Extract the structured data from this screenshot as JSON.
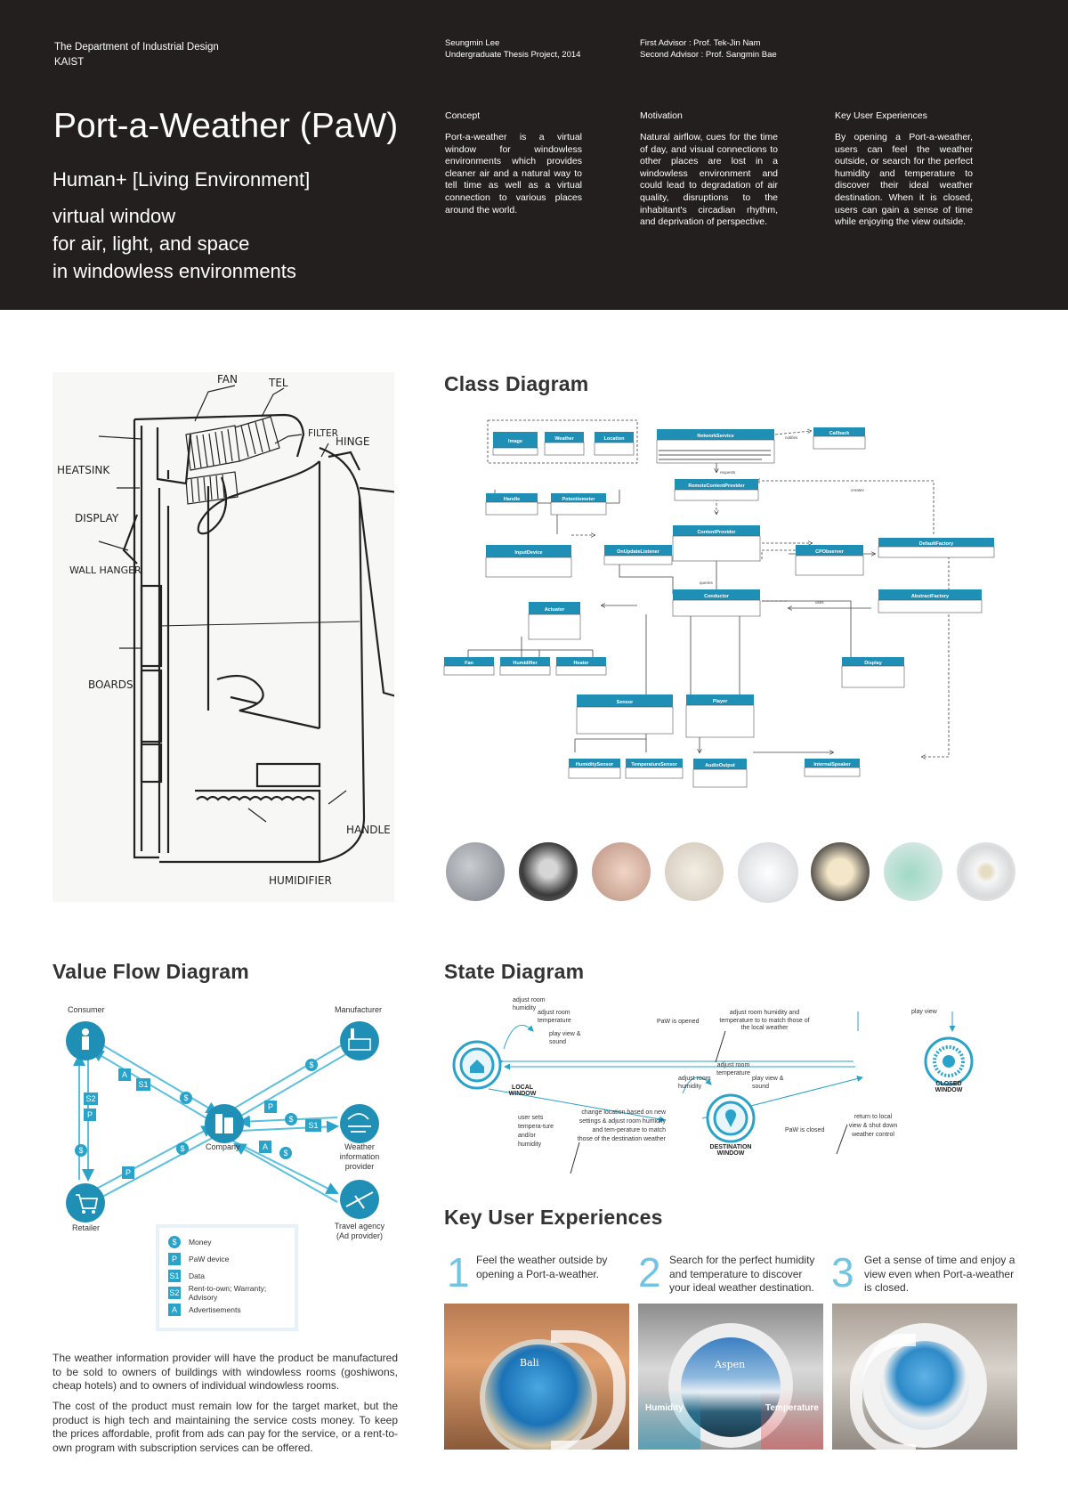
{
  "header": {
    "dept_line1": "The Department of Industrial Design",
    "dept_line2": "KAIST",
    "author_line1": "Seungmin Lee",
    "author_line2": "Undergraduate Thesis Project, 2014",
    "advisor_line1": "First Advisor : Prof. Tek-Jin Nam",
    "advisor_line2": "Second Advisor : Prof. Sangmin Bae",
    "title": "Port-a-Weather (PaW)",
    "subtitle": "Human+ [Living Environment]",
    "tagline1": "virtual window",
    "tagline2": "for air, light, and space",
    "tagline3": "in windowless environments",
    "concept_label": "Concept",
    "concept_text": "Port-a-weather is a virtual window for windowless environments which provides cleaner air and a natural way to tell time as well as a virtual connection to various places around the world.",
    "motivation_label": "Motivation",
    "motivation_text": "Natural airflow, cues for the time of day, and visual connections to other places are lost in a windowless environment and could lead to degradation of air quality, disruptions to the inhabitant's circadian rhythm, and deprivation of perspective.",
    "kux_label": "Key User Experiences",
    "kux_text": "By opening a Port-a-weather, users can feel the weather outside, or search for the perfect humidity and temperature to discover their ideal weather destination. When it is closed, users can gain a sense of time while enjoying the view outside."
  },
  "sketch": {
    "labels": [
      "FAN",
      "TEL",
      "FILTER",
      "HINGE",
      "HEATSINK",
      "DISPLAY",
      "WALL HANGER",
      "BOARDS",
      "HANDLE",
      "HUMIDIFIER"
    ]
  },
  "class_diagram": {
    "title": "Class Diagram",
    "classes": {
      "image": "Image",
      "weather": "Weather",
      "location": "Location",
      "network": "NetworkService",
      "callback": "Callback",
      "remote": "RemoteContentProvider",
      "handle": "Handle",
      "potentiometer": "Potentiometer",
      "content_provider": "ContentProvider",
      "default_factory": "DefaultFactory",
      "input_device": "InputDevice",
      "on_update": "OnUpdateListener",
      "cp_observer": "CPObserver",
      "conductor": "Conductor",
      "abstract_factory": "AbstractFactory",
      "actuator": "Actuator",
      "fan": "Fan",
      "humidifier": "Humidifier",
      "heater": "Heater",
      "display": "Display",
      "sensor": "Sensor",
      "player": "Player",
      "humidity_sensor": "HumiditySensor",
      "temperature_sensor": "TemperatureSensor",
      "audio_output": "AudioOutput",
      "internal_speaker": "InternalSpeaker"
    },
    "edge_labels": {
      "notifies": "notifies",
      "requests": "requests",
      "creates": "creates",
      "queries": "queries",
      "uses": "uses"
    }
  },
  "value_flow": {
    "title": "Value Flow Diagram",
    "consumer": "Consumer",
    "manufacturer": "Manufacturer",
    "company": "Company",
    "weather_provider": "Weather information provider",
    "retailer": "Retailer",
    "travel_agency": "Travel agency (Ad provider)",
    "legend": [
      {
        "symbol": "$",
        "label": "Money"
      },
      {
        "symbol": "P",
        "label": "PaW device"
      },
      {
        "symbol": "S1",
        "label": "Data"
      },
      {
        "symbol": "S2",
        "label": "Rent-to-own; Warranty; Advisory"
      },
      {
        "symbol": "A",
        "label": "Advertisements"
      }
    ],
    "para1": "The weather information provider will have the product be manufactured to be sold to owners of buildings with windowless rooms (goshiwons, cheap hotels) and to owners of individual windowless rooms.",
    "para2": "The cost of the product must remain low for the target market, but the product is high tech and maintaining the service costs money. To keep the prices affordable, profit from ads can pay for the service, or a rent-to-own program with subscription services can be offered."
  },
  "state_diagram": {
    "title": "State Diagram",
    "local_window": "LOCAL WINDOW",
    "closed_window": "CLOSED WINDOW",
    "destination_window": "DESTINATION WINDOW",
    "local_actions": [
      "adjust room humidity",
      "adjust room temperature",
      "play view & sound"
    ],
    "dest_actions": [
      "adjust room temperature",
      "adjust room humidity",
      "play view & sound"
    ],
    "closed_action": "play view",
    "paw_opened": "PaW is opened",
    "opened_effect": "adjust room humidity and temperature to to match those of the local weather",
    "user_sets": "user sets tempera-ture and/or humidity",
    "change_location": "change location based on new settings & adjust room humidity and tem-perature to match those of the destination weather",
    "paw_closed": "PaW is closed",
    "return_local": "return to local view & shut down weather control"
  },
  "key_ux": {
    "title": "Key User Experiences",
    "items": [
      {
        "num": "1",
        "text": "Feel the weather outside by opening a Port-a-weather.",
        "photo_label": "Bali"
      },
      {
        "num": "2",
        "text": "Search for the perfect humidity and temperature to discover your ideal weather destination.",
        "photo_label": "Aspen"
      },
      {
        "num": "3",
        "text": "Get a sense of time and enjoy a view even when Port-a-weather is closed.",
        "photo_label": ""
      }
    ],
    "humidity_label": "Humidity",
    "temperature_label": "Temperature"
  },
  "colors": {
    "header_bg": "#231f1f",
    "accent": "#29a3c9",
    "uml_header": "#1f8fb5"
  }
}
